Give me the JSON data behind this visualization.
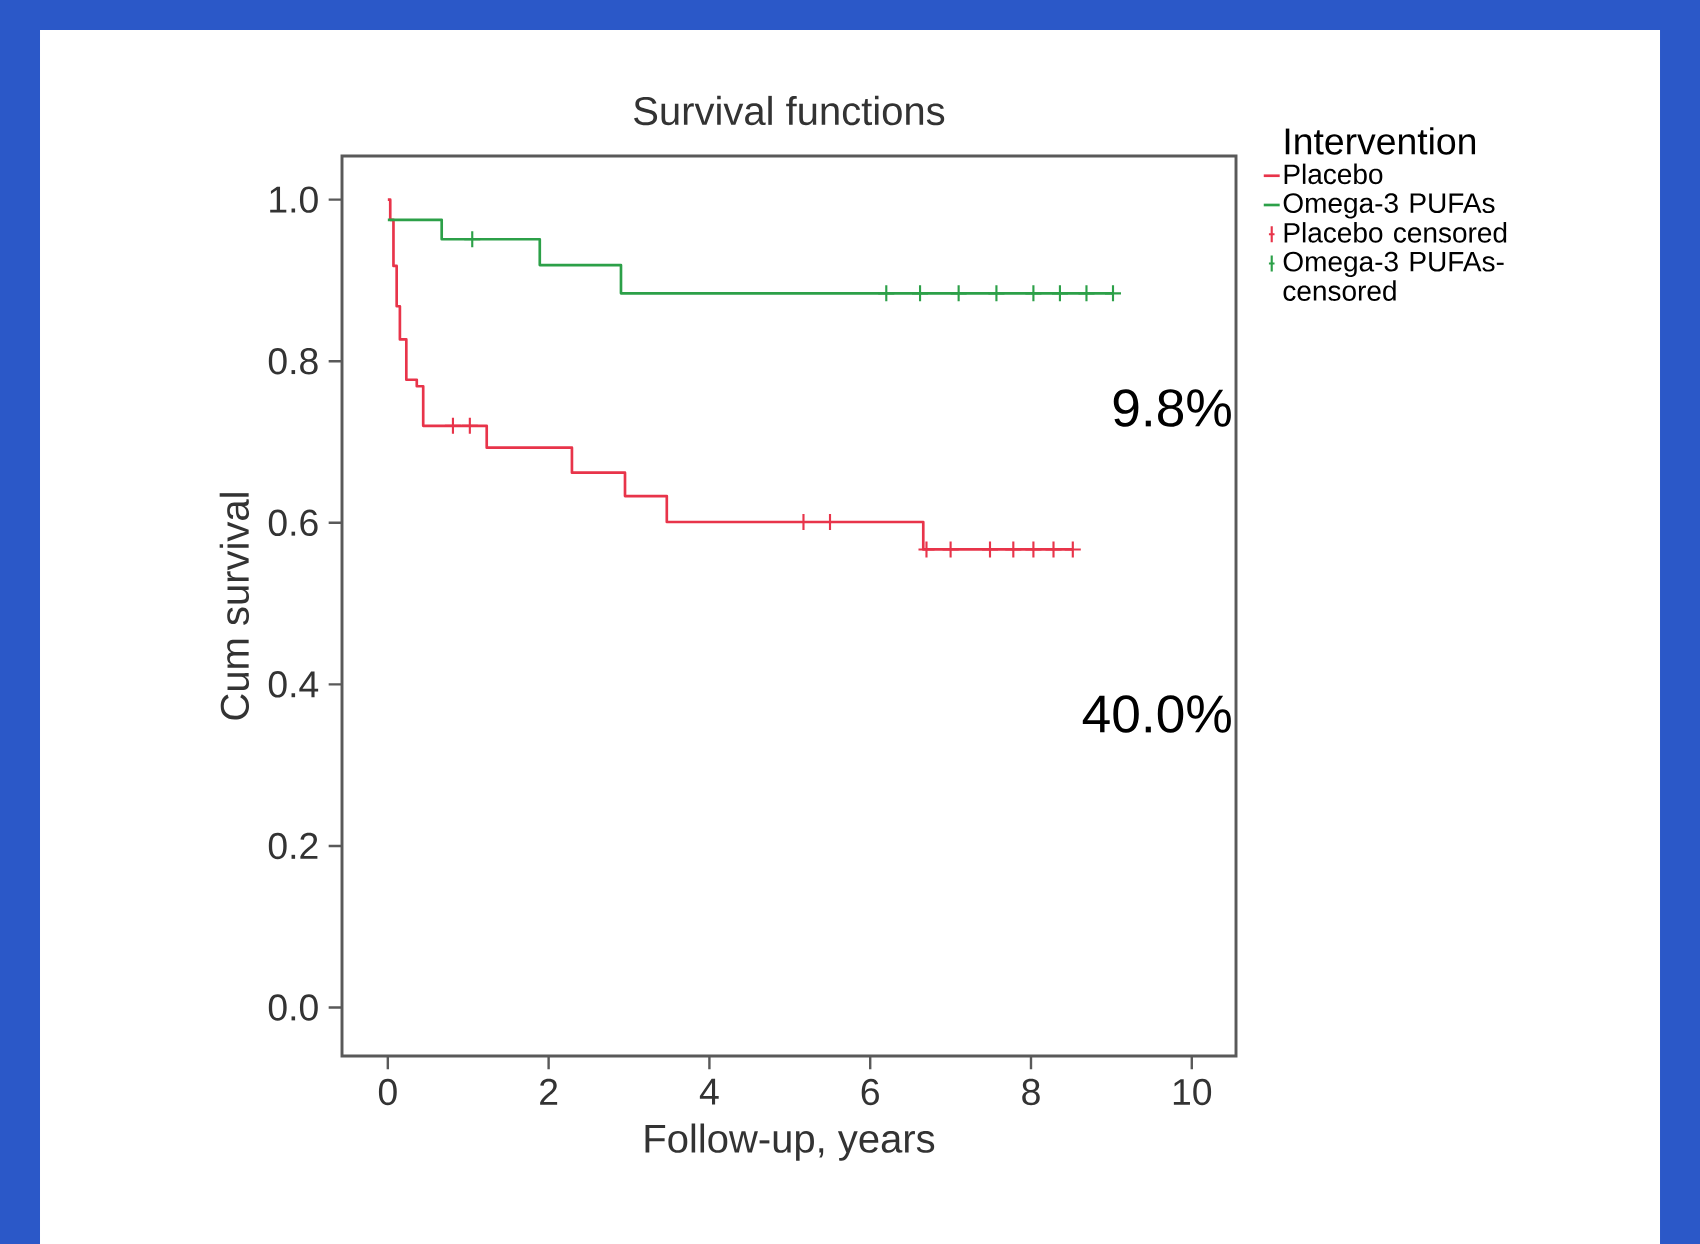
{
  "chart_data": {
    "type": "step",
    "title": "Survival functions",
    "xlabel": "Follow-up, years",
    "ylabel": "Cum survival",
    "legend_title": "Intervention",
    "legend": "top right",
    "xlim": [
      -0.57,
      10.55
    ],
    "ylim": [
      -0.06,
      1.054
    ],
    "xticks": [
      0,
      2,
      4,
      6,
      8,
      10
    ],
    "yticks": [
      {
        "value": 0,
        "label": "0.0"
      },
      {
        "value": 0.2,
        "label": "0.2"
      },
      {
        "value": 0.4,
        "label": "0.4"
      },
      {
        "value": 0.6,
        "label": "0.6"
      },
      {
        "value": 0.8,
        "label": "0.8"
      },
      {
        "value": 1,
        "label": "1.0"
      }
    ],
    "annotations": [
      "9.8%",
      "40.0%"
    ],
    "series": [
      {
        "name": "Placebo",
        "type": "step",
        "color": "#e8344a",
        "marker": "none",
        "x": [
          0,
          0.03,
          0.07,
          0.11,
          0.15,
          0.23,
          0.36,
          0.44,
          1.23,
          2.29,
          2.95,
          3.47,
          6.66,
          8.52
        ],
        "values": [
          1.0,
          0.975,
          0.918,
          0.868,
          0.827,
          0.777,
          0.769,
          0.72,
          0.693,
          0.662,
          0.633,
          0.601,
          0.567,
          0.567
        ]
      },
      {
        "name": "Omega-3 PUFAs",
        "type": "step",
        "color": "#2ca048",
        "marker": "none",
        "x": [
          0,
          0.67,
          1.89,
          2.9,
          9.02
        ],
        "values": [
          0.975,
          0.951,
          0.919,
          0.884,
          0.884
        ]
      },
      {
        "name": "Placebo censored",
        "type": "scatter",
        "color": "#e8344a",
        "marker": "cross",
        "x": [
          0.81,
          1.02,
          5.17,
          5.5,
          6.7,
          7.0,
          7.49,
          7.78,
          8.03,
          8.28,
          8.52
        ],
        "values": [
          0.72,
          0.72,
          0.601,
          0.601,
          0.567,
          0.567,
          0.567,
          0.567,
          0.567,
          0.567,
          0.567
        ]
      },
      {
        "name": "Omega-3 PUFAs-censored",
        "type": "scatter",
        "color": "#2ca048",
        "marker": "cross",
        "x": [
          1.05,
          6.2,
          6.62,
          7.1,
          7.57,
          8.03,
          8.36,
          8.69,
          9.02
        ],
        "values": [
          0.951,
          0.884,
          0.884,
          0.884,
          0.884,
          0.884,
          0.884,
          0.884,
          0.884
        ]
      }
    ]
  }
}
